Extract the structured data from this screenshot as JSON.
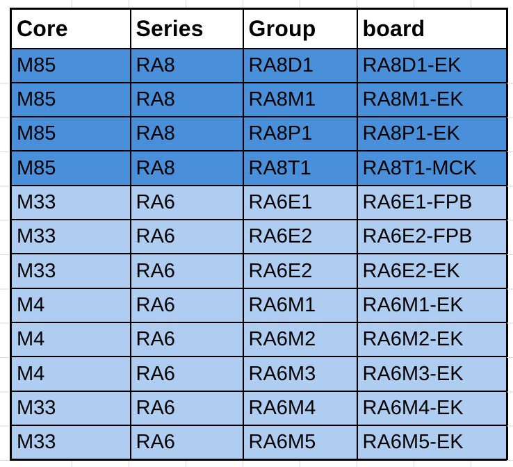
{
  "table": {
    "columns": [
      {
        "key": "core",
        "label": "Core"
      },
      {
        "key": "series",
        "label": "Series"
      },
      {
        "key": "group",
        "label": "Group"
      },
      {
        "key": "board",
        "label": "board"
      }
    ],
    "rows": [
      {
        "core": "M85",
        "series": "RA8",
        "group": "RA8D1",
        "board": "RA8D1-EK",
        "tone": "dark"
      },
      {
        "core": "M85",
        "series": "RA8",
        "group": "RA8M1",
        "board": "RA8M1-EK",
        "tone": "dark"
      },
      {
        "core": "M85",
        "series": "RA8",
        "group": "RA8P1",
        "board": "RA8P1-EK",
        "tone": "dark"
      },
      {
        "core": "M85",
        "series": "RA8",
        "group": "RA8T1",
        "board": "RA8T1-MCK",
        "tone": "dark"
      },
      {
        "core": "M33",
        "series": "RA6",
        "group": "RA6E1",
        "board": "RA6E1-FPB",
        "tone": "light"
      },
      {
        "core": "M33",
        "series": "RA6",
        "group": "RA6E2",
        "board": "RA6E2-FPB",
        "tone": "light"
      },
      {
        "core": "M33",
        "series": "RA6",
        "group": "RA6E2",
        "board": "RA6E2-EK",
        "tone": "light"
      },
      {
        "core": "M4",
        "series": "RA6",
        "group": "RA6M1",
        "board": "RA6M1-EK",
        "tone": "light"
      },
      {
        "core": "M4",
        "series": "RA6",
        "group": "RA6M2",
        "board": "RA6M2-EK",
        "tone": "light"
      },
      {
        "core": "M4",
        "series": "RA6",
        "group": "RA6M3",
        "board": "RA6M3-EK",
        "tone": "light"
      },
      {
        "core": "M33",
        "series": "RA6",
        "group": "RA6M4",
        "board": "RA6M4-EK",
        "tone": "light"
      },
      {
        "core": "M33",
        "series": "RA6",
        "group": "RA6M5",
        "board": "RA6M5-EK",
        "tone": "light"
      }
    ]
  },
  "colors": {
    "dark_row_bg": "#4a8fd9",
    "light_row_bg": "#aecdf0",
    "header_bg": "#ffffff",
    "table_border": "#000000",
    "gridline": "#d9d9d9",
    "text": "#000000"
  }
}
